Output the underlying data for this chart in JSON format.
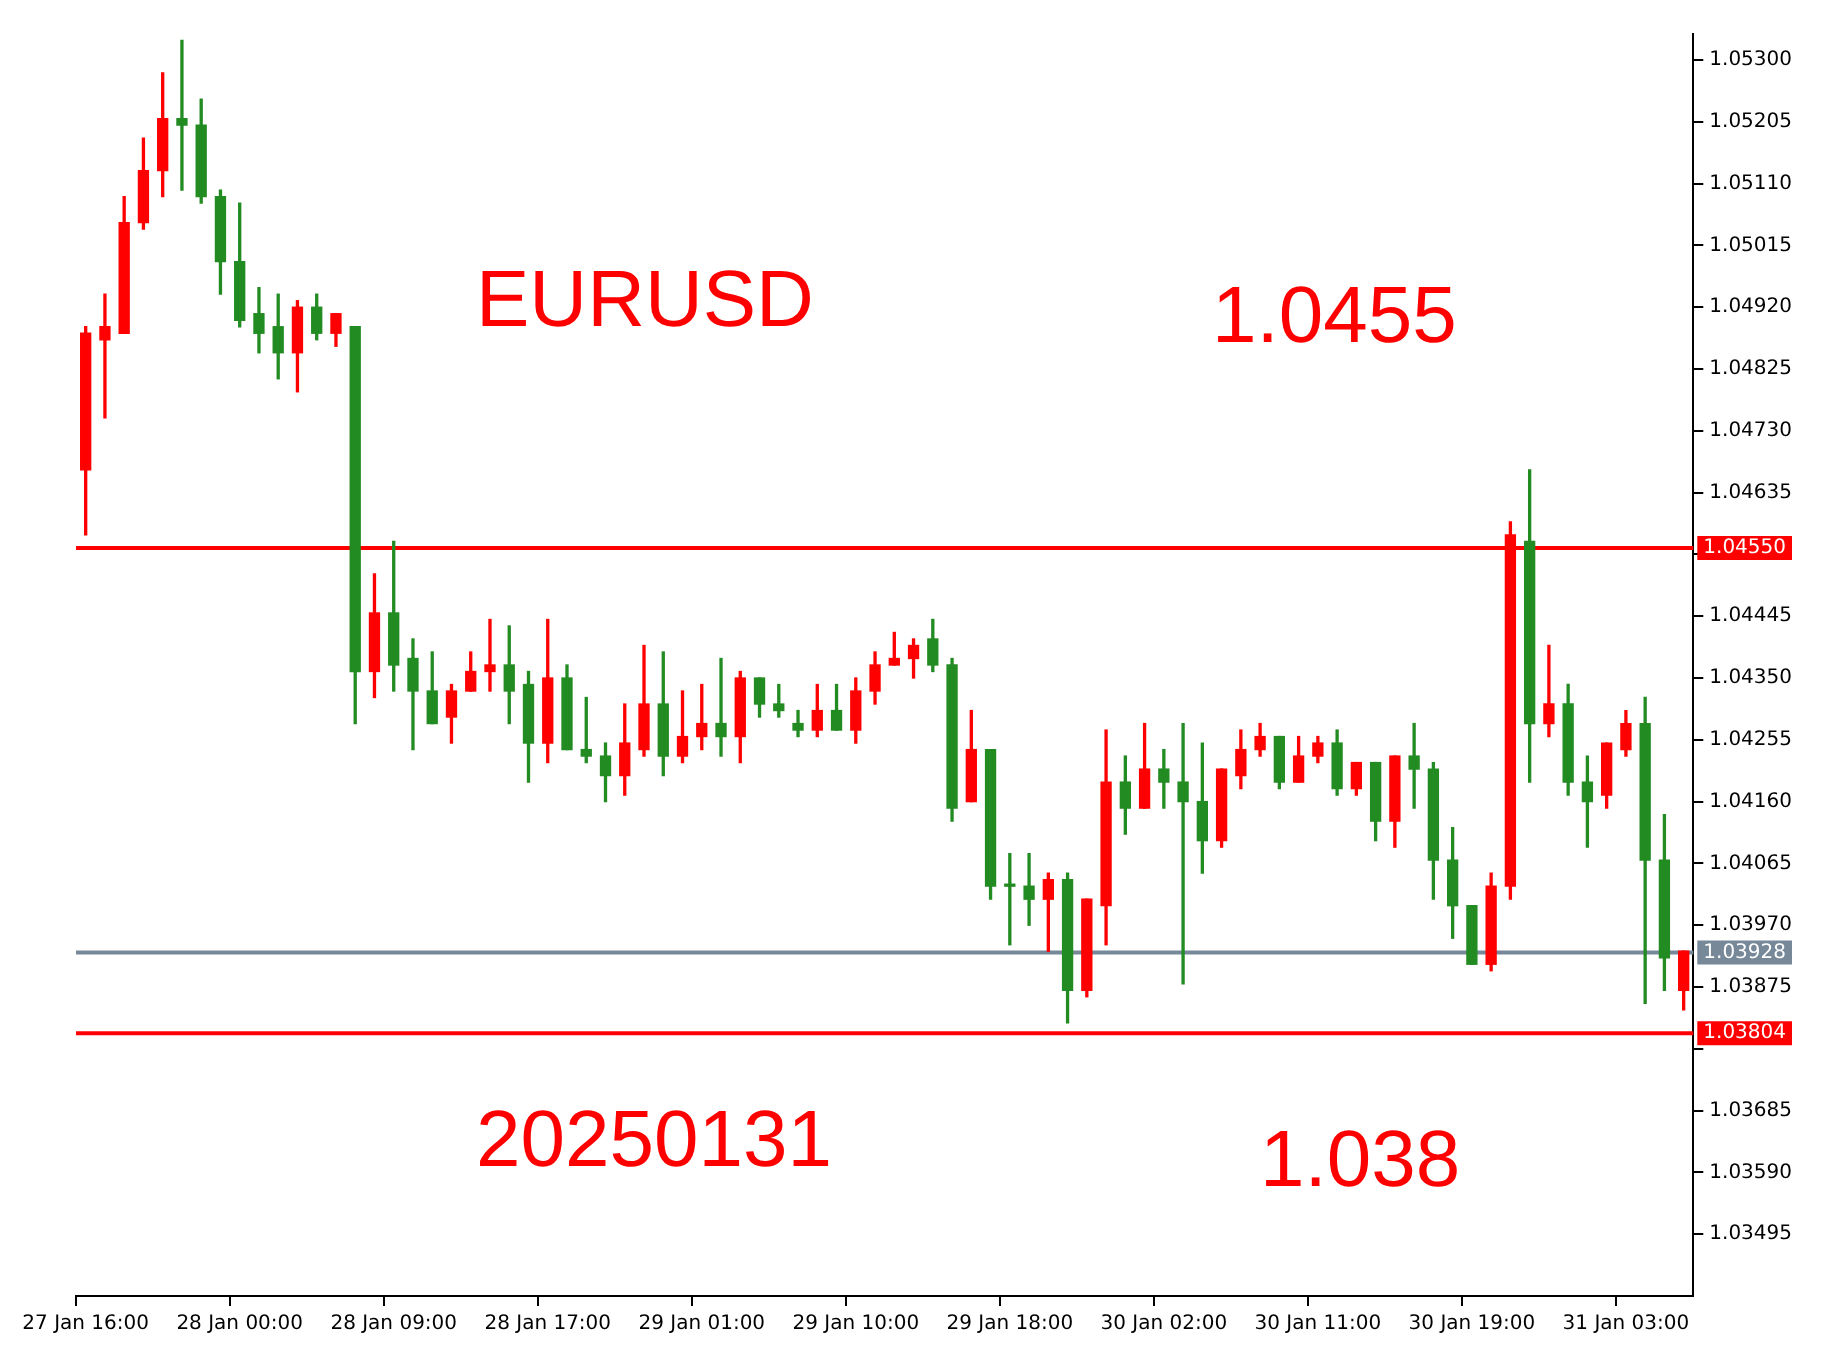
{
  "chart_data": {
    "type": "candlestick",
    "annotations": [
      "EURUSD",
      "1.0455",
      "20250131",
      "1.038"
    ],
    "categories": [
      "27 Jan 16:00",
      null,
      null,
      null,
      null,
      null,
      null,
      null,
      "28 Jan 00:00",
      null,
      null,
      null,
      null,
      null,
      null,
      null,
      "28 Jan 09:00",
      null,
      null,
      null,
      null,
      null,
      null,
      null,
      "28 Jan 17:00",
      null,
      null,
      null,
      null,
      null,
      null,
      null,
      "29 Jan 01:00",
      null,
      null,
      null,
      null,
      null,
      null,
      null,
      "29 Jan 10:00",
      null,
      null,
      null,
      null,
      null,
      null,
      null,
      "29 Jan 18:00",
      null,
      null,
      null,
      null,
      null,
      null,
      null,
      "30 Jan 02:00",
      null,
      null,
      null,
      null,
      null,
      null,
      null,
      "30 Jan 11:00",
      null,
      null,
      null,
      null,
      null,
      null,
      null,
      "30 Jan 19:00",
      null,
      null,
      null,
      null,
      null,
      null,
      null,
      "31 Jan 03:00",
      null,
      null,
      null
    ],
    "ohlc": [
      [
        1.0467,
        1.0489,
        1.0457,
        1.0488
      ],
      [
        1.0487,
        1.0494,
        1.0475,
        1.0489
      ],
      [
        1.0488,
        1.0509,
        1.0488,
        1.0505
      ],
      [
        1.0505,
        1.0518,
        1.0504,
        1.0513
      ],
      [
        1.0513,
        1.0528,
        1.0509,
        1.0521
      ],
      [
        1.0521,
        1.0533,
        1.051,
        1.052
      ],
      [
        1.052,
        1.0524,
        1.0508,
        1.0509
      ],
      [
        1.0509,
        1.051,
        1.0494,
        1.0499
      ],
      [
        1.0499,
        1.0508,
        1.0489,
        1.049
      ],
      [
        1.0491,
        1.0495,
        1.0485,
        1.0488
      ],
      [
        1.0489,
        1.0494,
        1.0481,
        1.0485
      ],
      [
        1.0485,
        1.0493,
        1.0479,
        1.0492
      ],
      [
        1.0492,
        1.0494,
        1.0487,
        1.0488
      ],
      [
        1.0488,
        1.0491,
        1.0486,
        1.0491
      ],
      [
        1.0489,
        1.0489,
        1.0428,
        1.0436
      ],
      [
        1.0436,
        1.0451,
        1.0432,
        1.0445
      ],
      [
        1.0445,
        1.0456,
        1.0433,
        1.0437
      ],
      [
        1.0438,
        1.0441,
        1.0424,
        1.0433
      ],
      [
        1.0433,
        1.0439,
        1.0428,
        1.0428
      ],
      [
        1.0429,
        1.0434,
        1.0425,
        1.0433
      ],
      [
        1.0433,
        1.0439,
        1.0433,
        1.0436
      ],
      [
        1.0436,
        1.0444,
        1.0433,
        1.0437
      ],
      [
        1.0437,
        1.0443,
        1.0428,
        1.0433
      ],
      [
        1.0434,
        1.0436,
        1.0419,
        1.0425
      ],
      [
        1.0425,
        1.0444,
        1.0422,
        1.0435
      ],
      [
        1.0435,
        1.0437,
        1.0424,
        1.0424
      ],
      [
        1.0424,
        1.0432,
        1.0422,
        1.0423
      ],
      [
        1.0423,
        1.0425,
        1.0416,
        1.042
      ],
      [
        1.042,
        1.0431,
        1.0417,
        1.0425
      ],
      [
        1.0424,
        1.044,
        1.0423,
        1.0431
      ],
      [
        1.0431,
        1.0439,
        1.042,
        1.0423
      ],
      [
        1.0423,
        1.0433,
        1.0422,
        1.0426
      ],
      [
        1.0426,
        1.0434,
        1.0424,
        1.0428
      ],
      [
        1.0428,
        1.0438,
        1.0423,
        1.0426
      ],
      [
        1.0426,
        1.0436,
        1.0422,
        1.0435
      ],
      [
        1.0435,
        1.0435,
        1.0429,
        1.0431
      ],
      [
        1.0431,
        1.0434,
        1.0429,
        1.043
      ],
      [
        1.0428,
        1.043,
        1.0426,
        1.0427
      ],
      [
        1.0427,
        1.0434,
        1.0426,
        1.043
      ],
      [
        1.043,
        1.0434,
        1.0427,
        1.0427
      ],
      [
        1.0427,
        1.0435,
        1.0425,
        1.0433
      ],
      [
        1.0433,
        1.0439,
        1.0431,
        1.0437
      ],
      [
        1.0437,
        1.0442,
        1.0437,
        1.0438
      ],
      [
        1.0438,
        1.0441,
        1.0435,
        1.044
      ],
      [
        1.0441,
        1.0444,
        1.0436,
        1.0437
      ],
      [
        1.0437,
        1.0438,
        1.0413,
        1.0415
      ],
      [
        1.0416,
        1.043,
        1.0416,
        1.0424
      ],
      [
        1.0424,
        1.0424,
        1.0401,
        1.0403
      ],
      [
        1.0403,
        1.0408,
        1.0394,
        1.0403
      ],
      [
        1.0403,
        1.0408,
        1.0397,
        1.0401
      ],
      [
        1.0401,
        1.0405,
        1.0393,
        1.0404
      ],
      [
        1.0404,
        1.0405,
        1.0382,
        1.0387
      ],
      [
        1.0387,
        1.0401,
        1.0386,
        1.0401
      ],
      [
        1.04,
        1.0427,
        1.0394,
        1.0419
      ],
      [
        1.0419,
        1.0423,
        1.0411,
        1.0415
      ],
      [
        1.0415,
        1.0428,
        1.0415,
        1.0421
      ],
      [
        1.0421,
        1.0424,
        1.0415,
        1.0419
      ],
      [
        1.0419,
        1.0428,
        1.0388,
        1.0416
      ],
      [
        1.0416,
        1.0425,
        1.0405,
        1.041
      ],
      [
        1.041,
        1.0421,
        1.0409,
        1.0421
      ],
      [
        1.042,
        1.0427,
        1.0418,
        1.0424
      ],
      [
        1.0424,
        1.0428,
        1.0423,
        1.0426
      ],
      [
        1.0426,
        1.0426,
        1.0418,
        1.0419
      ],
      [
        1.0419,
        1.0426,
        1.0419,
        1.0423
      ],
      [
        1.0423,
        1.0426,
        1.0422,
        1.0425
      ],
      [
        1.0425,
        1.0427,
        1.0417,
        1.0418
      ],
      [
        1.0418,
        1.0422,
        1.0417,
        1.0422
      ],
      [
        1.0422,
        1.0422,
        1.041,
        1.0413
      ],
      [
        1.0413,
        1.0423,
        1.0409,
        1.0423
      ],
      [
        1.0423,
        1.0428,
        1.0415,
        1.0421
      ],
      [
        1.0421,
        1.0422,
        1.0401,
        1.0407
      ],
      [
        1.0407,
        1.0412,
        1.0395,
        1.04
      ],
      [
        1.04,
        1.04,
        1.0391,
        1.0391
      ],
      [
        1.0391,
        1.0405,
        1.039,
        1.0403
      ],
      [
        1.0403,
        1.0459,
        1.0401,
        1.0457
      ],
      [
        1.0456,
        1.0467,
        1.0419,
        1.0428
      ],
      [
        1.0428,
        1.044,
        1.0426,
        1.0431
      ],
      [
        1.0431,
        1.0434,
        1.0417,
        1.0419
      ],
      [
        1.0419,
        1.0423,
        1.0409,
        1.0416
      ],
      [
        1.0417,
        1.0425,
        1.0415,
        1.0425
      ],
      [
        1.0424,
        1.043,
        1.0423,
        1.0428
      ],
      [
        1.0428,
        1.0432,
        1.0385,
        1.0407
      ],
      [
        1.0407,
        1.0414,
        1.0387,
        1.0392
      ],
      [
        1.0387,
        1.0393,
        1.0384,
        1.0393
      ]
    ],
    "colors": [
      "#ff0000",
      "#ff0000",
      "#ff0000",
      "#ff0000",
      "#ff0000",
      "#228b22",
      "#228b22",
      "#228b22",
      "#228b22",
      "#228b22",
      "#228b22",
      "#ff0000",
      "#228b22",
      "#ff0000",
      "#228b22",
      "#ff0000",
      "#228b22",
      "#228b22",
      "#228b22",
      "#ff0000",
      "#ff0000",
      "#ff0000",
      "#228b22",
      "#228b22",
      "#ff0000",
      "#228b22",
      "#228b22",
      "#228b22",
      "#ff0000",
      "#ff0000",
      "#228b22",
      "#ff0000",
      "#ff0000",
      "#228b22",
      "#ff0000",
      "#228b22",
      "#228b22",
      "#228b22",
      "#ff0000",
      "#228b22",
      "#ff0000",
      "#ff0000",
      "#ff0000",
      "#ff0000",
      "#228b22",
      "#228b22",
      "#ff0000",
      "#228b22",
      "#228b22",
      "#228b22",
      "#ff0000",
      "#228b22",
      "#ff0000",
      "#ff0000",
      "#228b22",
      "#ff0000",
      "#228b22",
      "#228b22",
      "#228b22",
      "#ff0000",
      "#ff0000",
      "#ff0000",
      "#228b22",
      "#ff0000",
      "#ff0000",
      "#228b22",
      "#ff0000",
      "#228b22",
      "#ff0000",
      "#228b22",
      "#228b22",
      "#228b22",
      "#228b22",
      "#ff0000",
      "#ff0000",
      "#228b22",
      "#ff0000",
      "#228b22",
      "#228b22",
      "#ff0000",
      "#ff0000",
      "#228b22",
      "#228b22",
      "#ff0000"
    ],
    "ylim": [
      1.034,
      1.0534
    ],
    "yticks": [
      {
        "value": 1.053,
        "label": "1.05300"
      },
      {
        "value": 1.05205,
        "label": "1.05205"
      },
      {
        "value": 1.0511,
        "label": "1.05110"
      },
      {
        "value": 1.05015,
        "label": "1.05015"
      },
      {
        "value": 1.0492,
        "label": "1.04920"
      },
      {
        "value": 1.04825,
        "label": "1.04825"
      },
      {
        "value": 1.0473,
        "label": "1.04730"
      },
      {
        "value": 1.04635,
        "label": "1.04635"
      },
      {
        "value": 1.0454,
        "label": null
      },
      {
        "value": 1.04445,
        "label": "1.04445"
      },
      {
        "value": 1.0435,
        "label": "1.04350"
      },
      {
        "value": 1.04255,
        "label": "1.04255"
      },
      {
        "value": 1.0416,
        "label": "1.04160"
      },
      {
        "value": 1.04065,
        "label": "1.04065"
      },
      {
        "value": 1.0397,
        "label": "1.03970"
      },
      {
        "value": 1.03875,
        "label": "1.03875"
      },
      {
        "value": 1.0378,
        "label": null
      },
      {
        "value": 1.03685,
        "label": "1.03685"
      },
      {
        "value": 1.0359,
        "label": "1.03590"
      },
      {
        "value": 1.03495,
        "label": "1.03495"
      }
    ],
    "ref_lines": [
      {
        "axis": "y",
        "value": 1.0455,
        "label": "1.04550",
        "color": "#ff0000",
        "line_style": "solid"
      },
      {
        "axis": "y",
        "value": 1.03804,
        "label": "1.03804",
        "color": "#ff0000",
        "line_style": "solid"
      },
      {
        "axis": "y",
        "value": 1.03928,
        "label": "1.03928",
        "color": "#778899",
        "line_style": "solid"
      }
    ],
    "grid": false,
    "legend": false
  }
}
